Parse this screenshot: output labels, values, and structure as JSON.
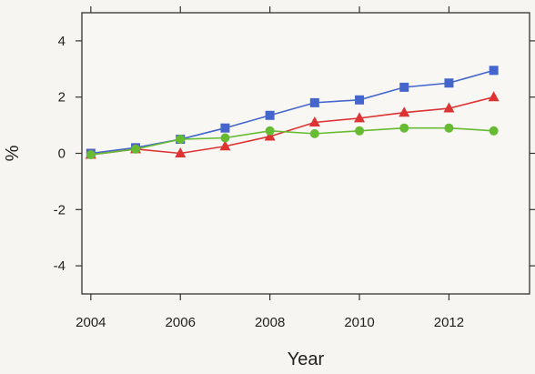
{
  "chart_data": {
    "type": "line",
    "title": "",
    "xlabel": "Year",
    "ylabel": "%",
    "xlim": [
      2003.8,
      2013.8
    ],
    "ylim": [
      -5,
      5
    ],
    "x_ticks": [
      2004,
      2006,
      2008,
      2010,
      2012
    ],
    "x_tick_labels": [
      "2004",
      "2006",
      "2008",
      "2010",
      "2012"
    ],
    "y_ticks": [
      -4,
      -2,
      0,
      2,
      4
    ],
    "y_tick_labels": [
      "-4",
      "-2",
      "0",
      "2",
      "4"
    ],
    "grid": false,
    "legend": "none",
    "x": [
      2004,
      2005,
      2006,
      2007,
      2008,
      2009,
      2010,
      2011,
      2012,
      2013
    ],
    "series": [
      {
        "marker": "square",
        "color": "#4466cc",
        "values": [
          0.0,
          0.2,
          0.5,
          0.9,
          1.35,
          1.8,
          1.9,
          2.35,
          2.5,
          2.95
        ]
      },
      {
        "marker": "triangle",
        "color": "#dd3333",
        "values": [
          -0.05,
          0.15,
          0.0,
          0.25,
          0.6,
          1.1,
          1.25,
          1.45,
          1.6,
          2.0
        ]
      },
      {
        "marker": "circle",
        "color": "#66bb33",
        "values": [
          -0.05,
          0.15,
          0.5,
          0.55,
          0.8,
          0.7,
          0.8,
          0.9,
          0.9,
          0.8
        ]
      }
    ]
  }
}
